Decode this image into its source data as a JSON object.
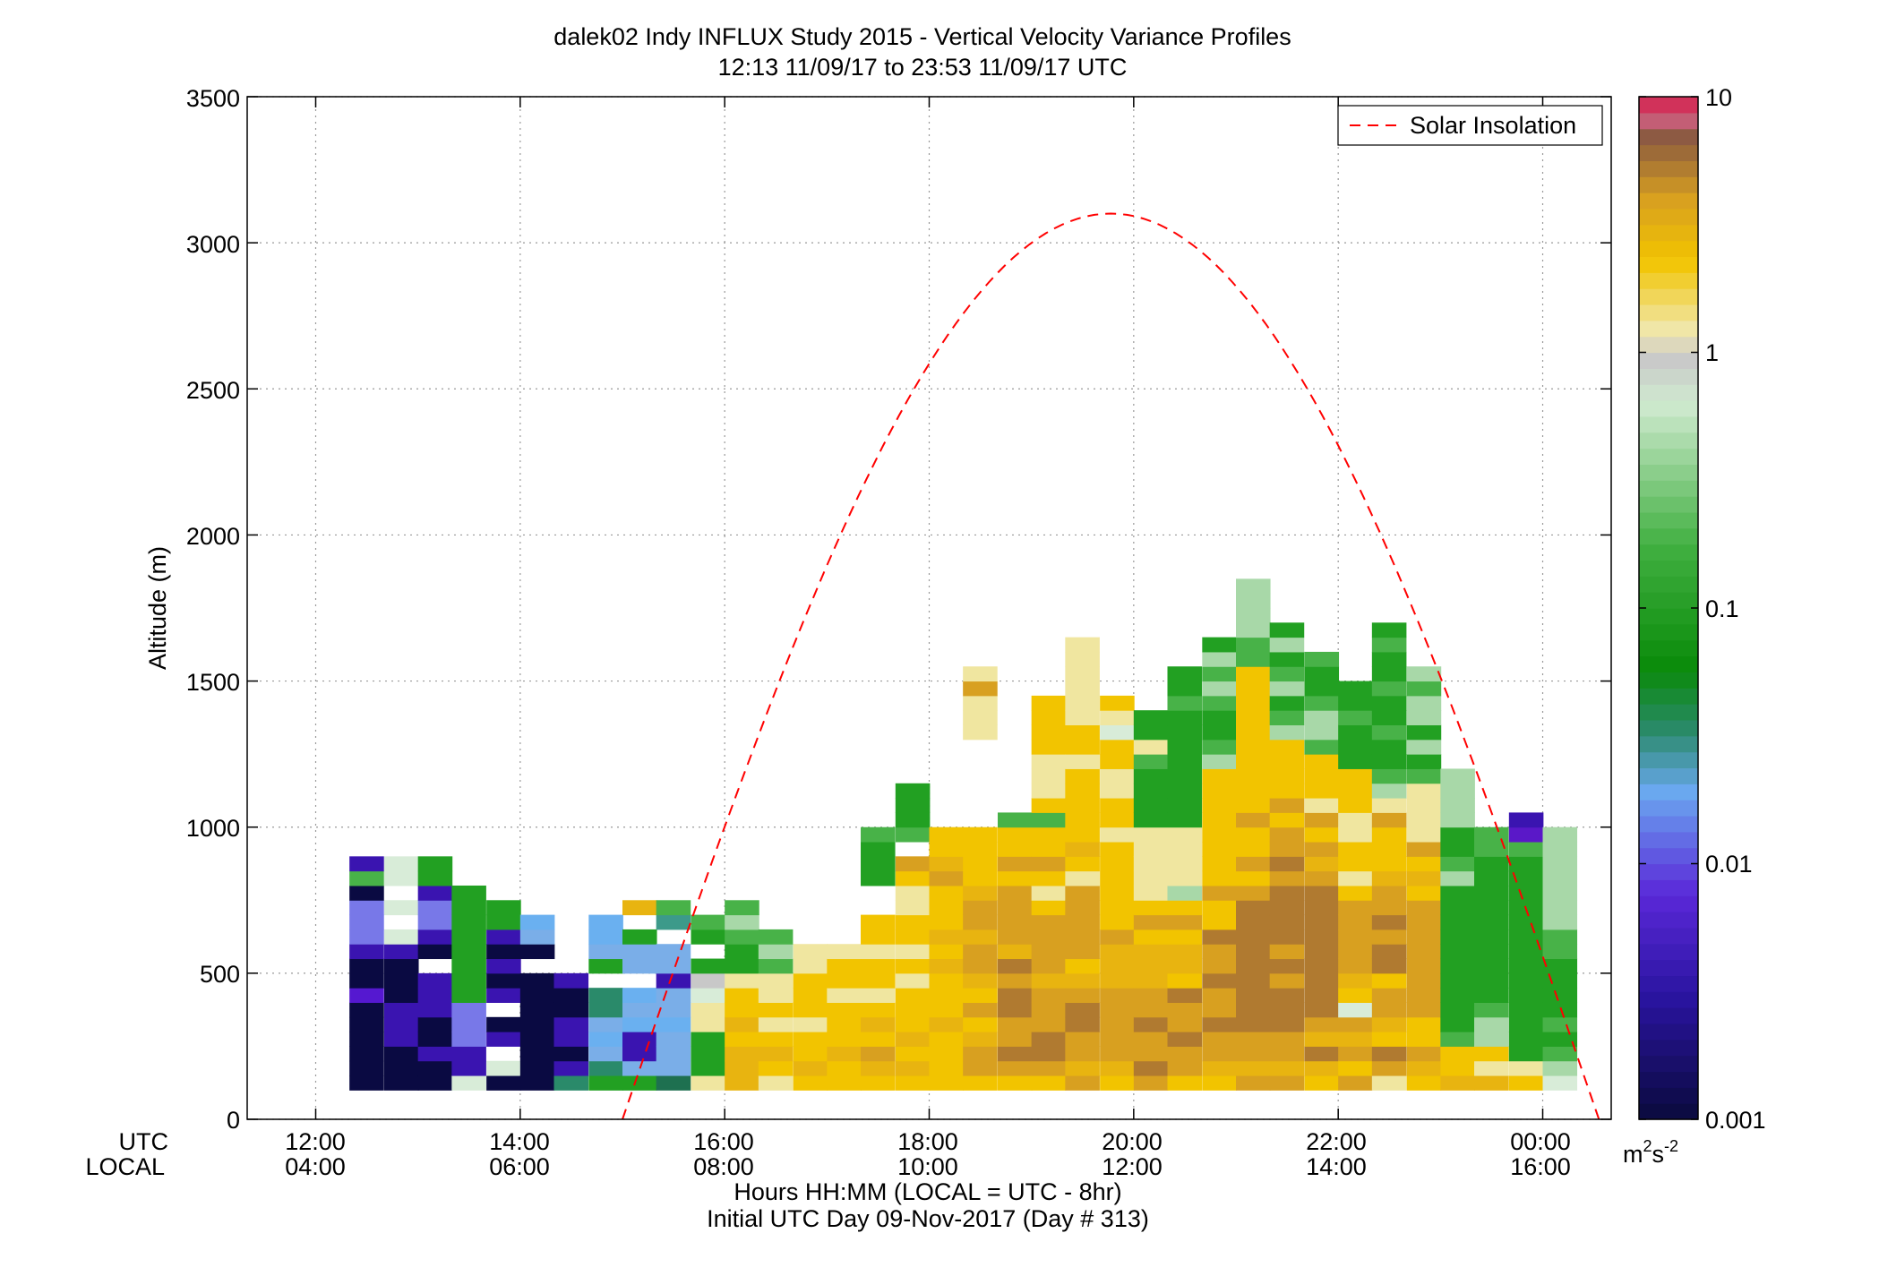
{
  "chart_data": {
    "type": "heatmap",
    "title": "dalek02 Indy INFLUX Study 2015 - Vertical Velocity Variance Profiles",
    "subtitle": "12:13 11/09/17 to 23:53 11/09/17  UTC",
    "ylabel": "Altitude (m)",
    "xlabel": "Hours HH:MM  (LOCAL = UTC - 8hr)",
    "xlabel2": "Initial UTC Day 09-Nov-2017 (Day # 313)",
    "x_row_labels": [
      "UTC",
      "LOCAL"
    ],
    "xlim_hours_utc": [
      11.33,
      24.67
    ],
    "ylim": [
      0,
      3500
    ],
    "grid": true,
    "x_ticks": [
      {
        "utc": "12:00",
        "local": "04:00",
        "hour": 12
      },
      {
        "utc": "14:00",
        "local": "06:00",
        "hour": 14
      },
      {
        "utc": "16:00",
        "local": "08:00",
        "hour": 16
      },
      {
        "utc": "18:00",
        "local": "10:00",
        "hour": 18
      },
      {
        "utc": "20:00",
        "local": "12:00",
        "hour": 20
      },
      {
        "utc": "22:00",
        "local": "14:00",
        "hour": 22
      },
      {
        "utc": "00:00",
        "local": "16:00",
        "hour": 24
      }
    ],
    "y_ticks": [
      "0",
      "500",
      "1000",
      "1500",
      "2000",
      "2500",
      "3000",
      "3500"
    ],
    "y_tick_values": [
      0,
      500,
      1000,
      1500,
      2000,
      2500,
      3000,
      3500
    ],
    "colorbar": {
      "scale": "log",
      "range": [
        0.001,
        10
      ],
      "tick_labels": [
        "0.001",
        "0.01",
        "0.1",
        "1",
        "10"
      ],
      "tick_values": [
        0.001,
        0.01,
        0.1,
        1,
        10
      ],
      "unit_base": "m",
      "unit_exp1": "2",
      "unit_mid": "s",
      "unit_exp2": "-2"
    },
    "legend": {
      "placement": "top-right",
      "entries": [
        {
          "label": "Solar Insolation",
          "color": "#ff0000",
          "style": "dashed"
        }
      ]
    },
    "solar_curve": {
      "peak_hour_utc": 19.75,
      "peak_value": 3100,
      "zero_hours_utc": [
        15.0,
        24.55
      ]
    },
    "grid_bins": {
      "hour_start": 12.33,
      "hour_step": 0.3333,
      "altitude_start": 100,
      "altitude_step": 50
    },
    "columns": [
      {
        "hour": 12.33,
        "cells": "nnnnnninnpvvvngp"
      },
      {
        "hour": 12.67,
        "cells": "nnnpppnnnpw.w.ww"
      },
      {
        "hour": 13.0,
        "cells": "nnpnnppp.npvvpGG"
      },
      {
        "hour": 13.33,
        "cells": "wppvvvGGGGGGGG"
      },
      {
        "hour": 13.67,
        "cells": "nw.pn.pnpnpGG"
      },
      {
        "hour": 14.0,
        "cells": "nnnnnnnn.nbl"
      },
      {
        "hour": 14.33,
        "cells": "Tpnppnnp"
      },
      {
        "hour": 14.67,
        "cells": "GTblbTT.Gbll"
      },
      {
        "hour": 15.0,
        "cells": "Gbpplbl.bbG.o"
      },
      {
        "hour": 15.33,
        "cells": "Rbbblbbpbb.Mg"
      },
      {
        "hour": 15.67,
        "cells": "yGGGyywNG.Gg"
      },
      {
        "hour": 16.0,
        "cells": "oooYoYYyGGgsg"
      },
      {
        "hour": 16.33,
        "cells": "yYoYyYyygsg"
      },
      {
        "hour": 16.67,
        "cells": "YoYYyYYYyy"
      },
      {
        "hour": 17.0,
        "cells": "YYoYYYyYYy"
      },
      {
        "hour": 17.33,
        "cells": "YoOYoYyYYyYY..GGGg"
      },
      {
        "hour": 17.67,
        "cells": "YoYoYYYyYyYYyyYO.gGGG"
      },
      {
        "hour": 18.0,
        "cells": "YYYYoYYYoYoYYYOoYY"
      },
      {
        "hour": 18.33,
        "cells": "YOOoYOYoOOoOOoYYYY......yyyOy"
      },
      {
        "hour": 18.67,
        "cells": "YOBOOBBOBoOOOOYOYYg......"
      },
      {
        "hour": 19.0,
        "cells": "YOBBOOOoOOOOYyYOYYgYyyyYYYY"
      },
      {
        "hour": 19.33,
        "cells": "OoOOBBOoYOOOOOyYoYYYYYyYYyyyyyy"
      },
      {
        "hour": 19.67,
        "cells": "YoOOOOOoooOYYYYYYyYYyyYYwyY"
      },
      {
        "hour": 20.0,
        "cells": "OBOOBOOoooYOYyyyyyGGGGgyGG"
      },
      {
        "hour": 20.33,
        "cells": "YOOBOOBYooYOYsyyyyGGGGGGGGgGG"
      },
      {
        "hour": 20.67,
        "cells": "YoOOBOOBOOBYYOYYYYYYYYsgGGgsgsG"
      },
      {
        "hour": 21.0,
        "cells": "OoOOBBBBBBBBBOYOYYOYYYYYYYYYYggssss"
      },
      {
        "hour": 21.33,
        "cells": "OoOOBBBOBOBBBBOBOOYOYYYYsgGsgGsG"
      },
      {
        "hour": 21.67,
        "cells": "YoBoOBBBBBBBBBOoOYOyYYYgssgGGg"
      },
      {
        "hour": 22.0,
        "cells": "OYOoOwYoOOOOOYyYYyyYYYGGGgGG"
      },
      {
        "hour": 22.33,
        "cells": "yOBYoOOYBBOBOOoYYYOysgGGgGGgGGgG"
      },
      {
        "hour": 22.67,
        "cells": "YoOYYOOOOOOOOYoYOyyyygGsGssgs"
      },
      {
        "hour": 23.0,
        "cells": "oYYgGGGGGGGGGGsgGGssss"
      },
      {
        "hour": 23.33,
        "cells": "oyYssgGGGGGGGGGGgg"
      },
      {
        "hour": 23.67,
        "cells": "YyGGGGGGGGGGGGGGgPp"
      },
      {
        "hour": 24.0,
        "cells": "wsgGgGGGGggsssssss"
      }
    ]
  }
}
